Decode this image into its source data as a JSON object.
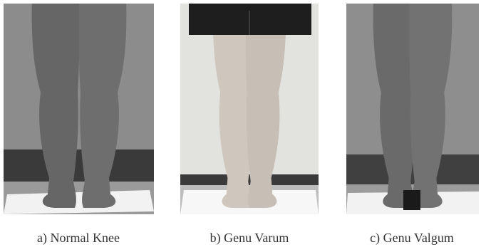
{
  "figure": {
    "panels": [
      {
        "caption": "a) Normal Knee"
      },
      {
        "caption": "b) Genu Varum"
      },
      {
        "caption": "c) Genu Valgum"
      }
    ]
  }
}
